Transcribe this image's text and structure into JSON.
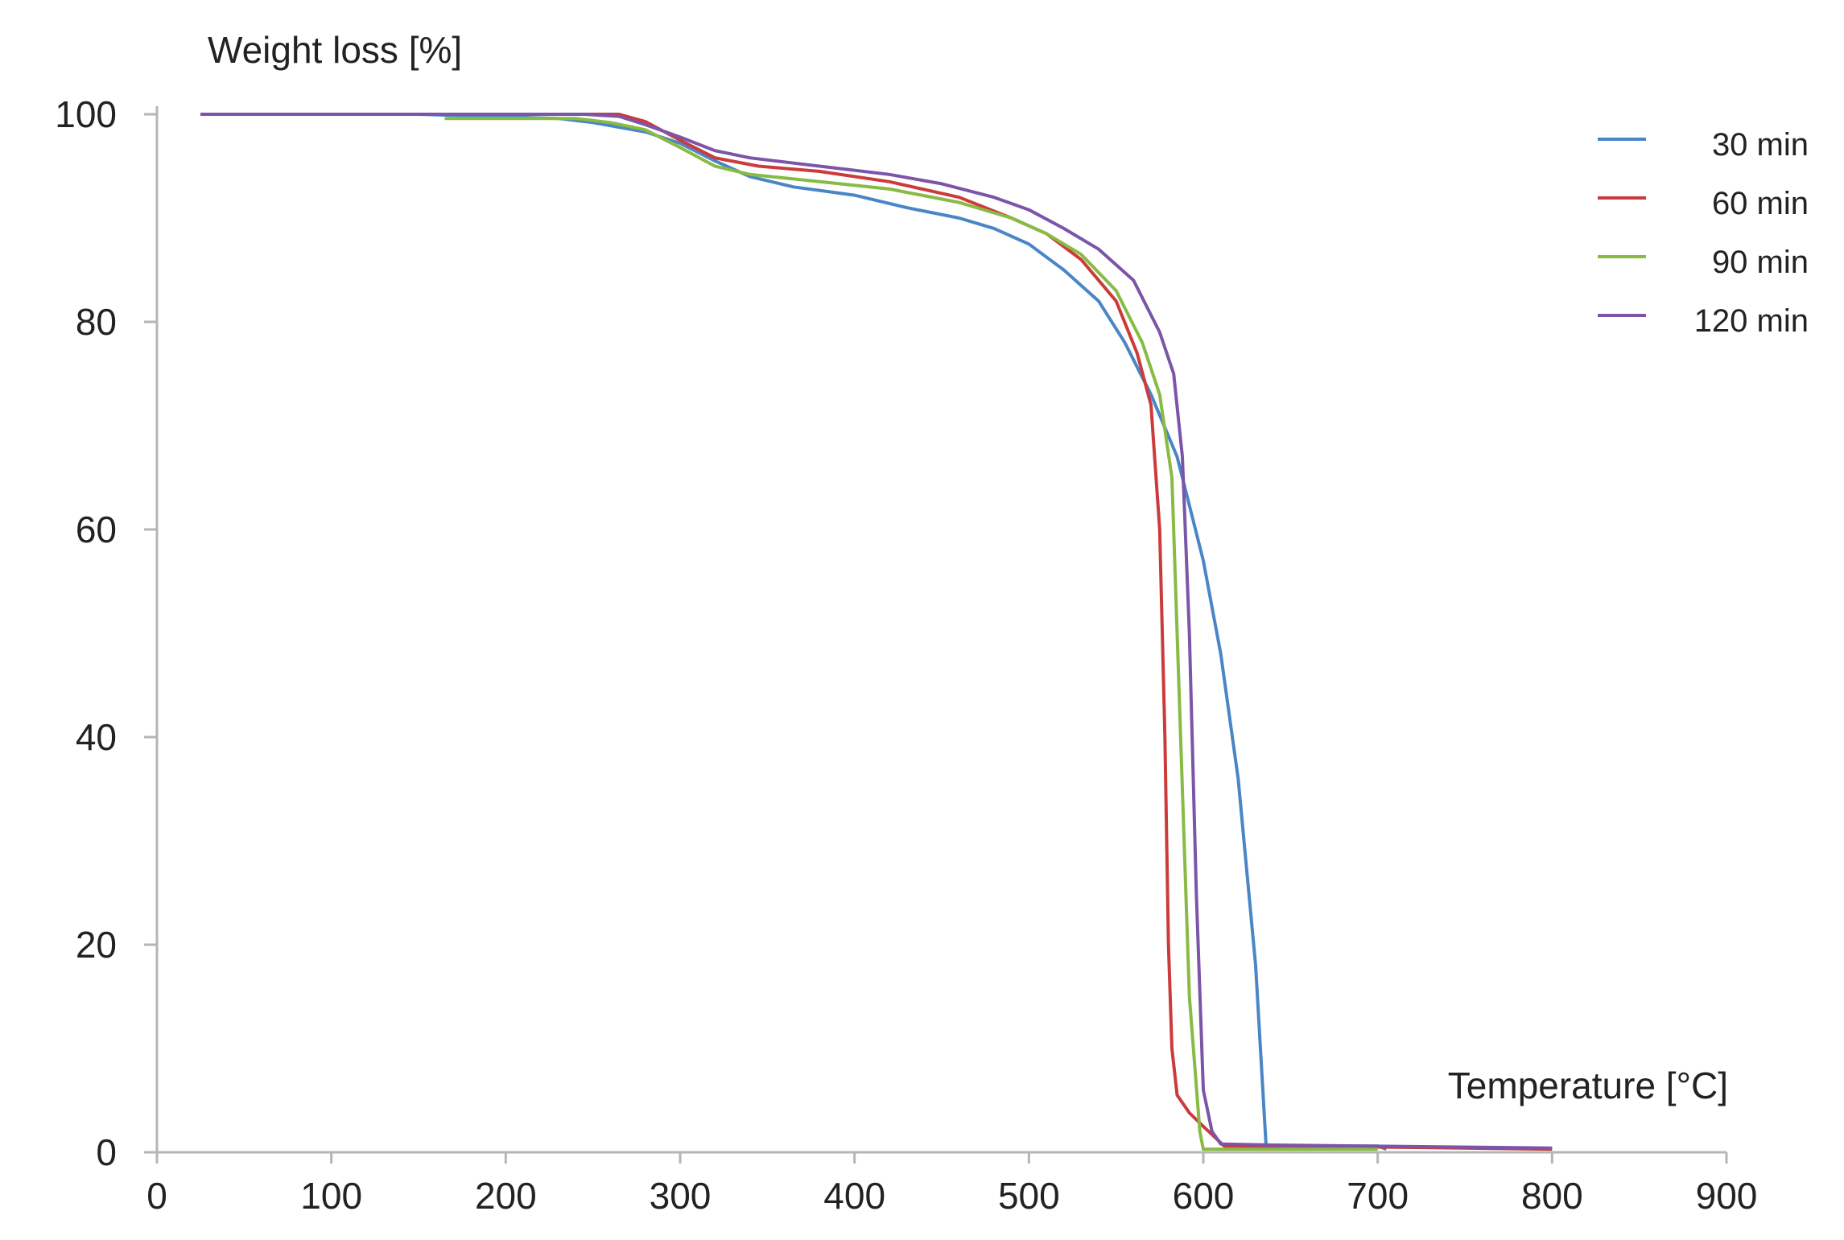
{
  "chart_data": {
    "type": "line",
    "title": "",
    "ylabel": "Weight loss [%]",
    "xlabel": "Temperature [°C]",
    "xlim": [
      0,
      900
    ],
    "ylim": [
      0,
      100
    ],
    "xticks": [
      0,
      100,
      200,
      300,
      400,
      500,
      600,
      700,
      800,
      900
    ],
    "yticks": [
      0,
      20,
      40,
      60,
      80,
      100
    ],
    "grid": false,
    "legend_position": "top-right",
    "series": [
      {
        "name": "30 min",
        "color": "#4a86c6",
        "points": [
          [
            25,
            100
          ],
          [
            150,
            100
          ],
          [
            230,
            99.6
          ],
          [
            250,
            99.2
          ],
          [
            280,
            98.3
          ],
          [
            300,
            97.2
          ],
          [
            320,
            95.5
          ],
          [
            340,
            94
          ],
          [
            365,
            93
          ],
          [
            400,
            92.2
          ],
          [
            430,
            91
          ],
          [
            460,
            90
          ],
          [
            480,
            89
          ],
          [
            500,
            87.5
          ],
          [
            520,
            85
          ],
          [
            540,
            82
          ],
          [
            555,
            78
          ],
          [
            570,
            73
          ],
          [
            585,
            67
          ],
          [
            600,
            57
          ],
          [
            610,
            48
          ],
          [
            620,
            36
          ],
          [
            630,
            18
          ],
          [
            636,
            0.6
          ],
          [
            700,
            0.6
          ],
          [
            705,
            0.3
          ]
        ]
      },
      {
        "name": "60 min",
        "color": "#cc3b3b",
        "points": [
          [
            25,
            100
          ],
          [
            250,
            100
          ],
          [
            265,
            100
          ],
          [
            280,
            99.3
          ],
          [
            300,
            97.5
          ],
          [
            320,
            95.8
          ],
          [
            345,
            95
          ],
          [
            380,
            94.5
          ],
          [
            420,
            93.5
          ],
          [
            460,
            92
          ],
          [
            490,
            90
          ],
          [
            510,
            88.5
          ],
          [
            530,
            86
          ],
          [
            550,
            82
          ],
          [
            562,
            77
          ],
          [
            570,
            72
          ],
          [
            575,
            60
          ],
          [
            578,
            40
          ],
          [
            580,
            20
          ],
          [
            582,
            10
          ],
          [
            585,
            5.5
          ],
          [
            592,
            3.8
          ],
          [
            600,
            2.5
          ],
          [
            612,
            0.6
          ],
          [
            700,
            0.5
          ],
          [
            800,
            0.3
          ]
        ]
      },
      {
        "name": "90 min",
        "color": "#88bb44",
        "points": [
          [
            165,
            99.6
          ],
          [
            240,
            99.6
          ],
          [
            260,
            99.2
          ],
          [
            280,
            98.5
          ],
          [
            300,
            96.8
          ],
          [
            320,
            95
          ],
          [
            340,
            94.2
          ],
          [
            380,
            93.5
          ],
          [
            420,
            92.8
          ],
          [
            460,
            91.5
          ],
          [
            490,
            90
          ],
          [
            510,
            88.5
          ],
          [
            530,
            86.5
          ],
          [
            550,
            83
          ],
          [
            565,
            78
          ],
          [
            575,
            73
          ],
          [
            582,
            65
          ],
          [
            587,
            40
          ],
          [
            592,
            15
          ],
          [
            598,
            2
          ],
          [
            600,
            0.3
          ],
          [
            700,
            0.3
          ]
        ]
      },
      {
        "name": "120 min",
        "color": "#7b55a8",
        "points": [
          [
            25,
            100
          ],
          [
            245,
            100
          ],
          [
            265,
            99.8
          ],
          [
            280,
            99
          ],
          [
            300,
            97.8
          ],
          [
            320,
            96.5
          ],
          [
            340,
            95.8
          ],
          [
            380,
            95
          ],
          [
            420,
            94.2
          ],
          [
            450,
            93.3
          ],
          [
            480,
            92
          ],
          [
            500,
            90.8
          ],
          [
            520,
            89
          ],
          [
            540,
            87
          ],
          [
            560,
            84
          ],
          [
            575,
            79
          ],
          [
            583,
            75
          ],
          [
            588,
            67
          ],
          [
            592,
            50
          ],
          [
            596,
            25
          ],
          [
            600,
            6
          ],
          [
            605,
            2
          ],
          [
            610,
            0.8
          ],
          [
            640,
            0.7
          ],
          [
            800,
            0.4
          ]
        ]
      }
    ]
  }
}
